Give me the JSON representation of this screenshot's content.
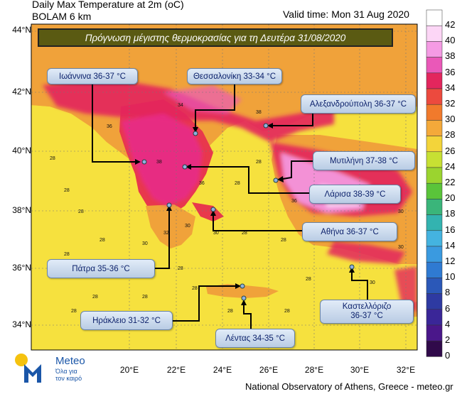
{
  "header": {
    "line1": "Daily Max Temperature at 2m (oC)",
    "line2": "BOLAM 6 km",
    "valid": "Valid time: Mon 31 Aug 2020"
  },
  "banner": "Πρόγνωση μέγιστης θερμοκρασίας για τη Δευτέρα 31/08/2020",
  "colors": {
    "sea": "#f6e13e",
    "land_base": "#f0a23a",
    "hot_34": "#e8384c",
    "hot_38": "#e72b8b",
    "hot_40": "#f4a5e6",
    "label_text": "#0a1f6a"
  },
  "axes": {
    "lat_ticks": [
      "44°N",
      "42°N",
      "40°N",
      "38°N",
      "36°N",
      "34°N"
    ],
    "lon_ticks": [
      "20°E",
      "22°E",
      "24°E",
      "26°E",
      "28°E",
      "30°E",
      "32°E"
    ]
  },
  "colorbar": {
    "labels": [
      "42",
      "40",
      "38",
      "36",
      "34",
      "32",
      "30",
      "28",
      "26",
      "24",
      "22",
      "20",
      "18",
      "16",
      "14",
      "12",
      "10",
      "8",
      "6",
      "4",
      "2",
      "0"
    ],
    "colors": [
      "#ffffff",
      "#fcd6f6",
      "#f59be4",
      "#ea58b8",
      "#e3265d",
      "#ec4a3e",
      "#f17a2c",
      "#f4a93a",
      "#f3d43a",
      "#c7e033",
      "#9bd42f",
      "#5ac43a",
      "#3ab57a",
      "#33b3b0",
      "#44b3e0",
      "#3a9ae0",
      "#2f7ad2",
      "#2b58b8",
      "#2e3aa2",
      "#3a2698",
      "#4a178a",
      "#300a4a"
    ]
  },
  "cities": [
    {
      "text": "Ιωάννινα 36-37 °C"
    },
    {
      "text": "Θεσσαλονίκη 33-34 °C"
    },
    {
      "text": "Αλεξανδρούπολη 36-37 °C"
    },
    {
      "text": "Μυτιλήνη 37-38 °C"
    },
    {
      "text": "Λάρισα 38-39 °C"
    },
    {
      "text": "Αθήνα 36-37 °C"
    },
    {
      "text": "Πάτρα 35-36 °C"
    },
    {
      "text": "Καστελλόριζο\n36-37 °C"
    },
    {
      "text": "Ηράκλειο 31-32 °C"
    },
    {
      "text": "Λέντας 34-35 °C"
    }
  ],
  "logo": {
    "name": "Meteo",
    "slogan": "Όλα για τον καιρό"
  },
  "footer": "National Observatory of Athens, Greece - meteo.gr"
}
